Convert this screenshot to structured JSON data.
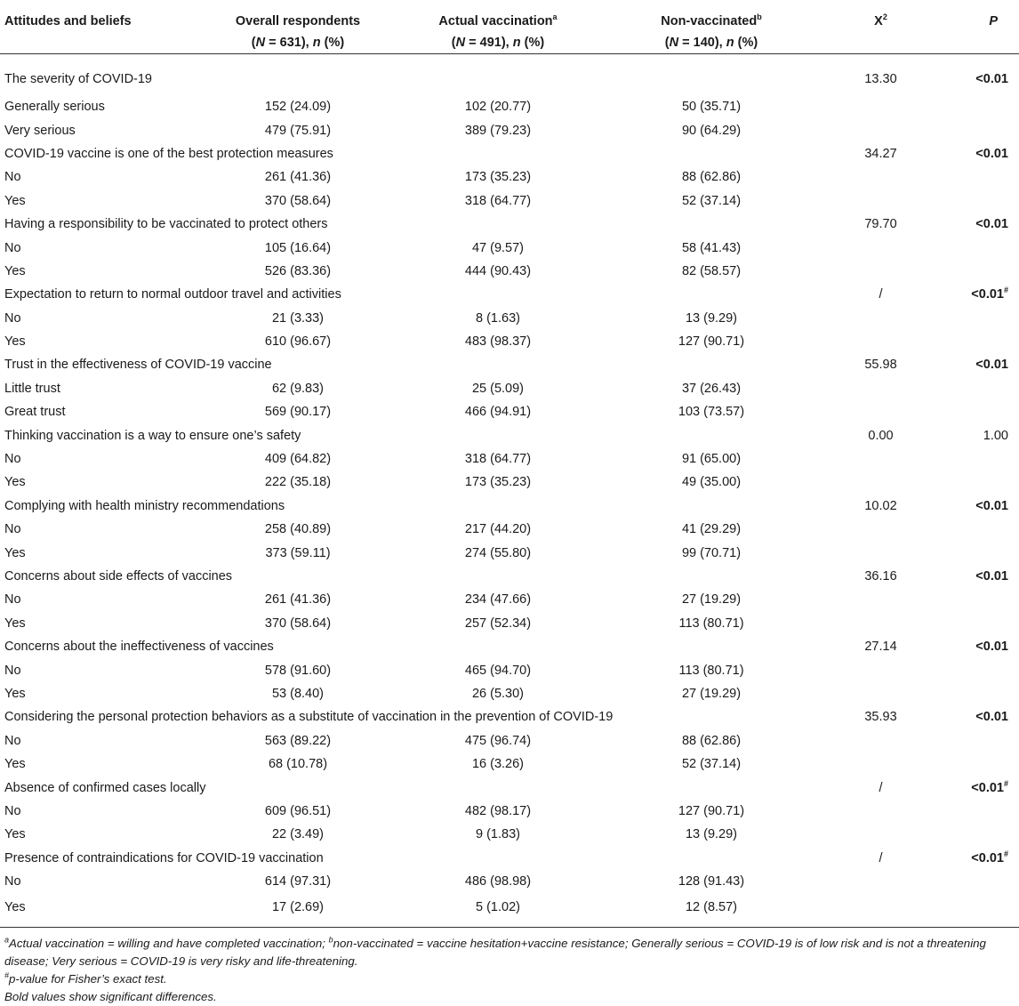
{
  "header": {
    "attr": "Attitudes and beliefs",
    "overall_l1": "Overall respondents",
    "overall_l2_a": "(",
    "overall_l2_n": "N",
    "overall_l2_b": " = 631), ",
    "overall_l2_n2": "n",
    "overall_l2_c": " (%)",
    "vac_l1": "Actual vaccination",
    "vac_sup": "a",
    "vac_l2_b": " = 491), ",
    "non_l1": "Non-vaccinated",
    "non_sup": "b",
    "non_l2_b": " = 140), ",
    "x2": "X",
    "x2_sup": "2",
    "p": "P"
  },
  "rows": [
    {
      "label": "The severity of COVID-19",
      "overall": "",
      "vac": "",
      "non": "",
      "x2": "13.30",
      "p": "<0.01",
      "p_sup": "",
      "bold": true,
      "cat": true
    },
    {
      "label": "Generally serious",
      "overall": "152 (24.09)",
      "vac": "102 (20.77)",
      "non": "50 (35.71)",
      "x2": "",
      "p": "",
      "p_sup": "",
      "bold": false,
      "cat": false
    },
    {
      "label": "Very serious",
      "overall": "479 (75.91)",
      "vac": "389 (79.23)",
      "non": "90 (64.29)",
      "x2": "",
      "p": "",
      "p_sup": "",
      "bold": false,
      "cat": false
    },
    {
      "label": "COVID-19 vaccine is one of the best protection measures",
      "overall": "",
      "vac": "",
      "non": "",
      "x2": "34.27",
      "p": "<0.01",
      "p_sup": "",
      "bold": true,
      "cat": true
    },
    {
      "label": "No",
      "overall": "261 (41.36)",
      "vac": "173 (35.23)",
      "non": "88 (62.86)",
      "x2": "",
      "p": "",
      "p_sup": "",
      "bold": false,
      "cat": false
    },
    {
      "label": "Yes",
      "overall": "370 (58.64)",
      "vac": "318 (64.77)",
      "non": "52 (37.14)",
      "x2": "",
      "p": "",
      "p_sup": "",
      "bold": false,
      "cat": false
    },
    {
      "label": "Having a responsibility to be vaccinated to protect others",
      "overall": "",
      "vac": "",
      "non": "",
      "x2": "79.70",
      "p": "<0.01",
      "p_sup": "",
      "bold": true,
      "cat": true
    },
    {
      "label": "No",
      "overall": "105 (16.64)",
      "vac": "47 (9.57)",
      "non": "58 (41.43)",
      "x2": "",
      "p": "",
      "p_sup": "",
      "bold": false,
      "cat": false
    },
    {
      "label": "Yes",
      "overall": "526 (83.36)",
      "vac": "444 (90.43)",
      "non": "82 (58.57)",
      "x2": "",
      "p": "",
      "p_sup": "",
      "bold": false,
      "cat": false
    },
    {
      "label": "Expectation to return to normal outdoor travel and activities",
      "overall": "",
      "vac": "",
      "non": "",
      "x2": "/",
      "p": "<0.01",
      "p_sup": "#",
      "bold": true,
      "cat": true
    },
    {
      "label": "No",
      "overall": "21 (3.33)",
      "vac": "8 (1.63)",
      "non": "13 (9.29)",
      "x2": "",
      "p": "",
      "p_sup": "",
      "bold": false,
      "cat": false
    },
    {
      "label": "Yes",
      "overall": "610 (96.67)",
      "vac": "483 (98.37)",
      "non": "127 (90.71)",
      "x2": "",
      "p": "",
      "p_sup": "",
      "bold": false,
      "cat": false
    },
    {
      "label": "Trust in the effectiveness of COVID-19 vaccine",
      "overall": "",
      "vac": "",
      "non": "",
      "x2": "55.98",
      "p": "<0.01",
      "p_sup": "",
      "bold": true,
      "cat": true
    },
    {
      "label": "Little trust",
      "overall": "62 (9.83)",
      "vac": "25 (5.09)",
      "non": "37 (26.43)",
      "x2": "",
      "p": "",
      "p_sup": "",
      "bold": false,
      "cat": false
    },
    {
      "label": "Great trust",
      "overall": "569 (90.17)",
      "vac": "466 (94.91)",
      "non": "103 (73.57)",
      "x2": "",
      "p": "",
      "p_sup": "",
      "bold": false,
      "cat": false
    },
    {
      "label": "Thinking vaccination is a way to ensure one’s safety",
      "overall": "",
      "vac": "",
      "non": "",
      "x2": "0.00",
      "p": "1.00",
      "p_sup": "",
      "bold": false,
      "cat": true
    },
    {
      "label": "No",
      "overall": "409 (64.82)",
      "vac": "318 (64.77)",
      "non": "91 (65.00)",
      "x2": "",
      "p": "",
      "p_sup": "",
      "bold": false,
      "cat": false
    },
    {
      "label": "Yes",
      "overall": "222 (35.18)",
      "vac": "173 (35.23)",
      "non": "49 (35.00)",
      "x2": "",
      "p": "",
      "p_sup": "",
      "bold": false,
      "cat": false
    },
    {
      "label": "Complying with health ministry recommendations",
      "overall": "",
      "vac": "",
      "non": "",
      "x2": "10.02",
      "p": "<0.01",
      "p_sup": "",
      "bold": true,
      "cat": true
    },
    {
      "label": "No",
      "overall": "258 (40.89)",
      "vac": "217 (44.20)",
      "non": "41 (29.29)",
      "x2": "",
      "p": "",
      "p_sup": "",
      "bold": false,
      "cat": false
    },
    {
      "label": "Yes",
      "overall": "373 (59.11)",
      "vac": "274 (55.80)",
      "non": "99 (70.71)",
      "x2": "",
      "p": "",
      "p_sup": "",
      "bold": false,
      "cat": false
    },
    {
      "label": "Concerns about side effects of vaccines",
      "overall": "",
      "vac": "",
      "non": "",
      "x2": "36.16",
      "p": "<0.01",
      "p_sup": "",
      "bold": true,
      "cat": true
    },
    {
      "label": "No",
      "overall": "261 (41.36)",
      "vac": "234 (47.66)",
      "non": "27 (19.29)",
      "x2": "",
      "p": "",
      "p_sup": "",
      "bold": false,
      "cat": false
    },
    {
      "label": "Yes",
      "overall": "370 (58.64)",
      "vac": "257 (52.34)",
      "non": "113 (80.71)",
      "x2": "",
      "p": "",
      "p_sup": "",
      "bold": false,
      "cat": false
    },
    {
      "label": "Concerns about the ineffectiveness of vaccines",
      "overall": "",
      "vac": "",
      "non": "",
      "x2": "27.14",
      "p": "<0.01",
      "p_sup": "",
      "bold": true,
      "cat": true
    },
    {
      "label": "No",
      "overall": "578 (91.60)",
      "vac": "465 (94.70)",
      "non": "113 (80.71)",
      "x2": "",
      "p": "",
      "p_sup": "",
      "bold": false,
      "cat": false
    },
    {
      "label": "Yes",
      "overall": "53 (8.40)",
      "vac": "26 (5.30)",
      "non": "27 (19.29)",
      "x2": "",
      "p": "",
      "p_sup": "",
      "bold": false,
      "cat": false
    },
    {
      "label": "Considering the personal protection behaviors as a substitute of vaccination in the prevention of COVID-19",
      "overall": "",
      "vac": "",
      "non": "",
      "x2": "35.93",
      "p": "<0.01",
      "p_sup": "",
      "bold": true,
      "cat": true
    },
    {
      "label": "No",
      "overall": "563 (89.22)",
      "vac": "475 (96.74)",
      "non": "88 (62.86)",
      "x2": "",
      "p": "",
      "p_sup": "",
      "bold": false,
      "cat": false
    },
    {
      "label": "Yes",
      "overall": "68 (10.78)",
      "vac": "16 (3.26)",
      "non": "52 (37.14)",
      "x2": "",
      "p": "",
      "p_sup": "",
      "bold": false,
      "cat": false
    },
    {
      "label": "Absence of confirmed cases locally",
      "overall": "",
      "vac": "",
      "non": "",
      "x2": "/",
      "p": "<0.01",
      "p_sup": "#",
      "bold": true,
      "cat": true
    },
    {
      "label": "No",
      "overall": "609 (96.51)",
      "vac": "482 (98.17)",
      "non": "127 (90.71)",
      "x2": "",
      "p": "",
      "p_sup": "",
      "bold": false,
      "cat": false
    },
    {
      "label": "Yes",
      "overall": "22 (3.49)",
      "vac": "9 (1.83)",
      "non": "13 (9.29)",
      "x2": "",
      "p": "",
      "p_sup": "",
      "bold": false,
      "cat": false
    },
    {
      "label": "Presence of contraindications for COVID-19 vaccination",
      "overall": "",
      "vac": "",
      "non": "",
      "x2": "/",
      "p": "<0.01",
      "p_sup": "#",
      "bold": true,
      "cat": true
    },
    {
      "label": "No",
      "overall": "614 (97.31)",
      "vac": "486 (98.98)",
      "non": "128 (91.43)",
      "x2": "",
      "p": "",
      "p_sup": "",
      "bold": false,
      "cat": false
    },
    {
      "label": "Yes",
      "overall": "17 (2.69)",
      "vac": "5 (1.02)",
      "non": "12 (8.57)",
      "x2": "",
      "p": "",
      "p_sup": "",
      "bold": false,
      "cat": false
    }
  ],
  "notes": {
    "n1_sup_a": "a",
    "n1_text_a": "Actual vaccination = willing and have completed vaccination; ",
    "n1_sup_b": "b",
    "n1_text_b": "non-vaccinated = vaccine hesitation+vaccine resistance; Generally serious = COVID-19 is of low risk and is not a threatening disease; Very serious = COVID-19 is very risky and life-threatening.",
    "n2_sup": "#",
    "n2_text": "p-value for Fisher’s exact test.",
    "n3_text": "Bold values show significant differences."
  }
}
